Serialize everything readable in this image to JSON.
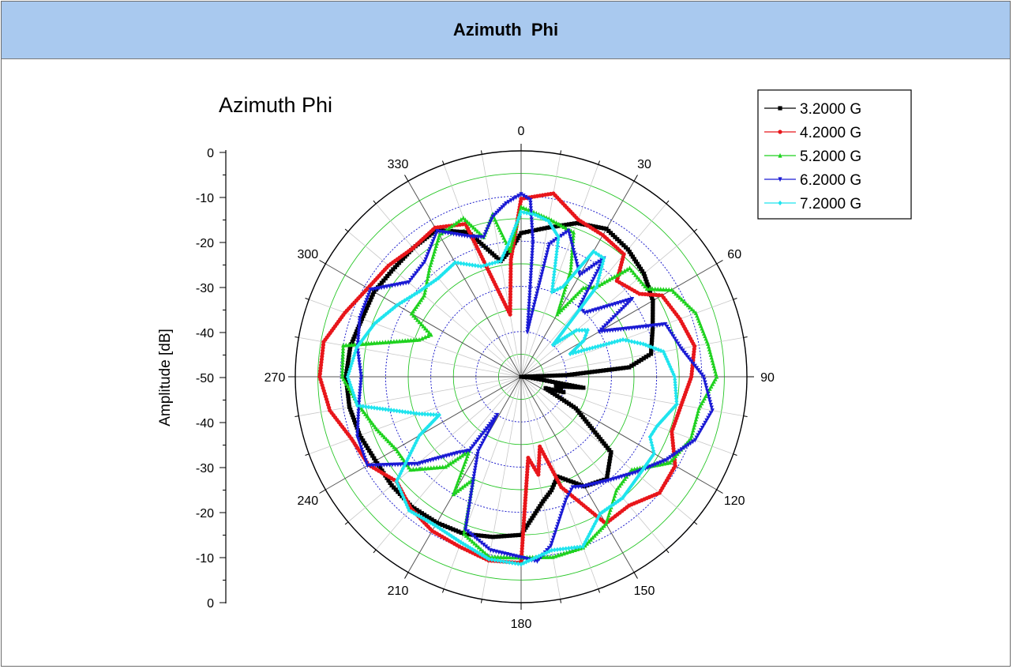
{
  "header": {
    "title": "Azimuth  Phi"
  },
  "chart_data": {
    "type": "polar-line",
    "title": "Azimuth Phi",
    "ylabel": "Amplitude [dB]",
    "r_range": [
      -50,
      0
    ],
    "r_ticks_left": [
      "0",
      "-10",
      "-20",
      "-30",
      "-40",
      "-50",
      "-40",
      "-30",
      "-20",
      "-10",
      "0"
    ],
    "angle_ticks": [
      {
        "deg": 0,
        "label": "0"
      },
      {
        "deg": 30,
        "label": "30"
      },
      {
        "deg": 60,
        "label": "60"
      },
      {
        "deg": 90,
        "label": "90"
      },
      {
        "deg": 120,
        "label": "120"
      },
      {
        "deg": 150,
        "label": "150"
      },
      {
        "deg": 180,
        "label": "180"
      },
      {
        "deg": 210,
        "label": "210"
      },
      {
        "deg": 240,
        "label": "240"
      },
      {
        "deg": 270,
        "label": "270"
      },
      {
        "deg": 300,
        "label": "300"
      },
      {
        "deg": 330,
        "label": "330"
      }
    ],
    "grid": true,
    "legend_position": "top-right",
    "series": [
      {
        "name": "3.2000 G",
        "color": "#000000",
        "marker": "square",
        "points": [
          [
            0,
            -18.2
          ],
          [
            10,
            -16.5
          ],
          [
            20,
            -13.8
          ],
          [
            30,
            -12.2
          ],
          [
            40,
            -13.2
          ],
          [
            50,
            -14.5
          ],
          [
            60,
            -16.3
          ],
          [
            70,
            -19.0
          ],
          [
            80,
            -20.8
          ],
          [
            85,
            -26
          ],
          [
            88,
            -40
          ],
          [
            90,
            -50
          ],
          [
            95,
            -48
          ],
          [
            100,
            -36
          ],
          [
            105,
            -42
          ],
          [
            110,
            -40
          ],
          [
            115,
            -44
          ],
          [
            120,
            -36
          ],
          [
            130,
            -24
          ],
          [
            140,
            -20.5
          ],
          [
            150,
            -22
          ],
          [
            160,
            -26.5
          ],
          [
            165,
            -24
          ],
          [
            170,
            -22
          ],
          [
            180,
            -15
          ],
          [
            190,
            -14
          ],
          [
            200,
            -13
          ],
          [
            210,
            -12.7
          ],
          [
            220,
            -12.4
          ],
          [
            230,
            -12.6
          ],
          [
            240,
            -12.8
          ],
          [
            250,
            -12.0
          ],
          [
            260,
            -11.4
          ],
          [
            270,
            -11.2
          ],
          [
            280,
            -11.6
          ],
          [
            290,
            -12.5
          ],
          [
            300,
            -12.4
          ],
          [
            310,
            -13
          ],
          [
            320,
            -12.8
          ],
          [
            330,
            -12.5
          ],
          [
            340,
            -16
          ],
          [
            350,
            -24
          ],
          [
            355,
            -22
          ],
          [
            360,
            -18.2
          ]
        ]
      },
      {
        "name": "4.2000 G",
        "color": "#e8161b",
        "marker": "circle",
        "points": [
          [
            0,
            -10.6
          ],
          [
            10,
            -8.8
          ],
          [
            20,
            -13
          ],
          [
            30,
            -13.8
          ],
          [
            40,
            -14.6
          ],
          [
            45,
            -20
          ],
          [
            55,
            -18
          ],
          [
            60,
            -14
          ],
          [
            70,
            -12.6
          ],
          [
            80,
            -11
          ],
          [
            90,
            -12.3
          ],
          [
            100,
            -14
          ],
          [
            110,
            -14.5
          ],
          [
            120,
            -10.6
          ],
          [
            130,
            -10
          ],
          [
            140,
            -12.8
          ],
          [
            150,
            -12.5
          ],
          [
            160,
            -24
          ],
          [
            165,
            -34
          ],
          [
            170,
            -28
          ],
          [
            175,
            -32
          ],
          [
            180,
            -8.8
          ],
          [
            190,
            -8.7
          ],
          [
            200,
            -10
          ],
          [
            210,
            -10.6
          ],
          [
            220,
            -12
          ],
          [
            230,
            -14
          ],
          [
            240,
            -11
          ],
          [
            250,
            -10
          ],
          [
            260,
            -7
          ],
          [
            270,
            -5.4
          ],
          [
            280,
            -5.6
          ],
          [
            290,
            -8.5
          ],
          [
            300,
            -10.8
          ],
          [
            310,
            -11.7
          ],
          [
            320,
            -12.8
          ],
          [
            330,
            -11.9
          ],
          [
            340,
            -14
          ],
          [
            345,
            -30
          ],
          [
            350,
            -36
          ],
          [
            355,
            -24
          ],
          [
            360,
            -10.6
          ]
        ]
      },
      {
        "name": "5.2000 G",
        "color": "#1fd21f",
        "marker": "triangle-up",
        "points": [
          [
            0,
            -12.4
          ],
          [
            10,
            -14.5
          ],
          [
            20,
            -16
          ],
          [
            25,
            -24
          ],
          [
            30,
            -34
          ],
          [
            35,
            -26
          ],
          [
            40,
            -24
          ],
          [
            45,
            -16
          ],
          [
            55,
            -16
          ],
          [
            60,
            -11.5
          ],
          [
            70,
            -8.8
          ],
          [
            80,
            -8
          ],
          [
            90,
            -6.7
          ],
          [
            100,
            -10
          ],
          [
            110,
            -10
          ],
          [
            120,
            -12
          ],
          [
            130,
            -18
          ],
          [
            140,
            -17.2
          ],
          [
            150,
            -12.4
          ],
          [
            160,
            -9.8
          ],
          [
            170,
            -9.5
          ],
          [
            180,
            -10
          ],
          [
            190,
            -9.5
          ],
          [
            200,
            -13
          ],
          [
            205,
            -25
          ],
          [
            210,
            -20
          ],
          [
            215,
            -30
          ],
          [
            220,
            -24
          ],
          [
            230,
            -18
          ],
          [
            240,
            -18
          ],
          [
            250,
            -16
          ],
          [
            260,
            -13.5
          ],
          [
            270,
            -10.4
          ],
          [
            280,
            -10
          ],
          [
            290,
            -26
          ],
          [
            295,
            -28
          ],
          [
            300,
            -22
          ],
          [
            310,
            -22
          ],
          [
            320,
            -18.5
          ],
          [
            330,
            -13.8
          ],
          [
            340,
            -12.6
          ],
          [
            345,
            -18
          ],
          [
            350,
            -13.5
          ],
          [
            355,
            -22
          ],
          [
            360,
            -12.4
          ]
        ]
      },
      {
        "name": "6.2000 G",
        "color": "#1a1ad4",
        "marker": "triangle-down",
        "points": [
          [
            0,
            -9.6
          ],
          [
            3,
            -10.8
          ],
          [
            5,
            -20
          ],
          [
            8,
            -40
          ],
          [
            12,
            -20
          ],
          [
            18,
            -16
          ],
          [
            30,
            -24
          ],
          [
            35,
            -18
          ],
          [
            40,
            -30
          ],
          [
            45,
            -30
          ],
          [
            55,
            -20
          ],
          [
            60,
            -30
          ],
          [
            65,
            -25
          ],
          [
            70,
            -16
          ],
          [
            80,
            -14
          ],
          [
            90,
            -9.6
          ],
          [
            100,
            -7
          ],
          [
            110,
            -9
          ],
          [
            120,
            -13
          ],
          [
            130,
            -17
          ],
          [
            140,
            -20
          ],
          [
            150,
            -22
          ],
          [
            155,
            -23
          ],
          [
            160,
            -21
          ],
          [
            170,
            -12
          ],
          [
            175,
            -9
          ],
          [
            180,
            -10
          ],
          [
            190,
            -11
          ],
          [
            200,
            -14
          ],
          [
            205,
            -25
          ],
          [
            210,
            -31
          ],
          [
            212,
            -40
          ],
          [
            215,
            -30
          ],
          [
            220,
            -28
          ],
          [
            230,
            -20
          ],
          [
            240,
            -10.7
          ],
          [
            250,
            -11.4
          ],
          [
            260,
            -13.5
          ],
          [
            270,
            -14.6
          ],
          [
            280,
            -13.2
          ],
          [
            290,
            -12
          ],
          [
            300,
            -11.5
          ],
          [
            310,
            -17.5
          ],
          [
            320,
            -16.8
          ],
          [
            330,
            -12.8
          ],
          [
            340,
            -17
          ],
          [
            345,
            -18
          ],
          [
            350,
            -14
          ],
          [
            355,
            -11.5
          ],
          [
            360,
            -9.6
          ]
        ]
      },
      {
        "name": "7.2000 G",
        "color": "#1fe4ee",
        "marker": "diamond",
        "points": [
          [
            0,
            -13.5
          ],
          [
            5,
            -14
          ],
          [
            10,
            -15
          ],
          [
            15,
            -18
          ],
          [
            20,
            -30
          ],
          [
            25,
            -28
          ],
          [
            30,
            -18
          ],
          [
            35,
            -18
          ],
          [
            40,
            -24
          ],
          [
            45,
            -40
          ],
          [
            50,
            -34
          ],
          [
            55,
            -32
          ],
          [
            60,
            -34
          ],
          [
            65,
            -38
          ],
          [
            70,
            -26
          ],
          [
            75,
            -22
          ],
          [
            80,
            -18
          ],
          [
            90,
            -16
          ],
          [
            100,
            -15
          ],
          [
            110,
            -18
          ],
          [
            115,
            -18.5
          ],
          [
            120,
            -16
          ],
          [
            130,
            -16
          ],
          [
            140,
            -15
          ],
          [
            150,
            -15
          ],
          [
            160,
            -10
          ],
          [
            170,
            -11
          ],
          [
            180,
            -8.5
          ],
          [
            190,
            -9
          ],
          [
            200,
            -11
          ],
          [
            210,
            -12
          ],
          [
            220,
            -11.4
          ],
          [
            230,
            -14
          ],
          [
            240,
            -24
          ],
          [
            245,
            -30
          ],
          [
            250,
            -26
          ],
          [
            260,
            -13.2
          ],
          [
            270,
            -11.6
          ],
          [
            280,
            -13
          ],
          [
            290,
            -15.5
          ],
          [
            300,
            -18.3
          ],
          [
            310,
            -20.6
          ],
          [
            320,
            -21.5
          ],
          [
            330,
            -20.8
          ],
          [
            340,
            -24
          ],
          [
            350,
            -24
          ],
          [
            355,
            -20
          ],
          [
            360,
            -13.5
          ]
        ]
      }
    ]
  }
}
